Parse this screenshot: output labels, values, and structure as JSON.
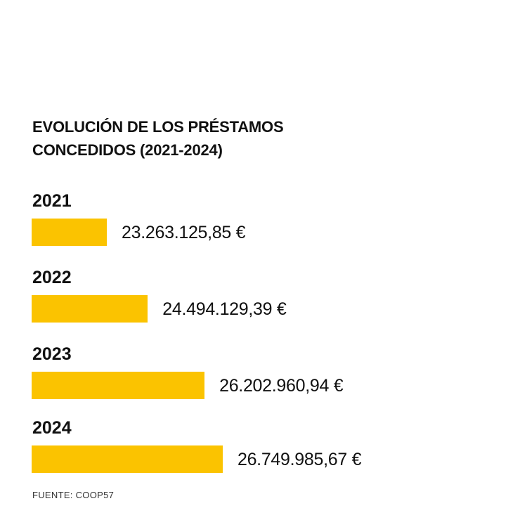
{
  "chart_data": {
    "type": "bar",
    "orientation": "horizontal",
    "title": "EVOLUCIÓN DE LOS PRÉSTAMOS CONCEDIDOS (2021-2024)",
    "title_lines": [
      "EVOLUCIÓN DE LOS PRÉSTAMOS",
      "CONCEDIDOS (2021-2024)"
    ],
    "categories": [
      "2021",
      "2022",
      "2023",
      "2024"
    ],
    "values": [
      23263125.85,
      24494129.39,
      26202960.94,
      26749985.67
    ],
    "value_labels": [
      "23.263.125,85 €",
      "24.494.129,39 €",
      "26.202.960,94 €",
      "26.749.985,67 €"
    ],
    "xlim": [
      21000000,
      27000000
    ],
    "grid": false,
    "bar_color": "#FBC300",
    "source": "FUENTE: COOP57"
  }
}
